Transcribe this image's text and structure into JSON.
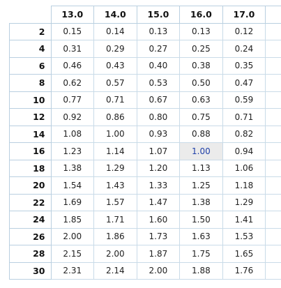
{
  "table": {
    "columns": [
      "13.0",
      "14.0",
      "15.0",
      "16.0",
      "17.0"
    ],
    "rows": [
      {
        "label": "2",
        "values": [
          "0.15",
          "0.14",
          "0.13",
          "0.13",
          "0.12"
        ]
      },
      {
        "label": "4",
        "values": [
          "0.31",
          "0.29",
          "0.27",
          "0.25",
          "0.24"
        ]
      },
      {
        "label": "6",
        "values": [
          "0.46",
          "0.43",
          "0.40",
          "0.38",
          "0.35"
        ]
      },
      {
        "label": "8",
        "values": [
          "0.62",
          "0.57",
          "0.53",
          "0.50",
          "0.47"
        ]
      },
      {
        "label": "10",
        "values": [
          "0.77",
          "0.71",
          "0.67",
          "0.63",
          "0.59"
        ]
      },
      {
        "label": "12",
        "values": [
          "0.92",
          "0.86",
          "0.80",
          "0.75",
          "0.71"
        ]
      },
      {
        "label": "14",
        "values": [
          "1.08",
          "1.00",
          "0.93",
          "0.88",
          "0.82"
        ]
      },
      {
        "label": "16",
        "values": [
          "1.23",
          "1.14",
          "1.07",
          "1.00",
          "0.94"
        ]
      },
      {
        "label": "18",
        "values": [
          "1.38",
          "1.29",
          "1.20",
          "1.13",
          "1.06"
        ]
      },
      {
        "label": "20",
        "values": [
          "1.54",
          "1.43",
          "1.33",
          "1.25",
          "1.18"
        ]
      },
      {
        "label": "22",
        "values": [
          "1.69",
          "1.57",
          "1.47",
          "1.38",
          "1.29"
        ]
      },
      {
        "label": "24",
        "values": [
          "1.85",
          "1.71",
          "1.60",
          "1.50",
          "1.41"
        ]
      },
      {
        "label": "26",
        "values": [
          "2.00",
          "1.86",
          "1.73",
          "1.63",
          "1.53"
        ]
      },
      {
        "label": "28",
        "values": [
          "2.15",
          "2.00",
          "1.87",
          "1.75",
          "1.65"
        ]
      },
      {
        "label": "30",
        "values": [
          "2.31",
          "2.14",
          "2.00",
          "1.88",
          "1.76"
        ]
      }
    ],
    "selected_cell": {
      "row": 7,
      "col": 3
    },
    "colors": {
      "header_border": "#b9cfe0",
      "cell_border": "#c9dbe8",
      "selected_background": "#ebebeb",
      "selected_text": "#1e3fa8"
    }
  }
}
